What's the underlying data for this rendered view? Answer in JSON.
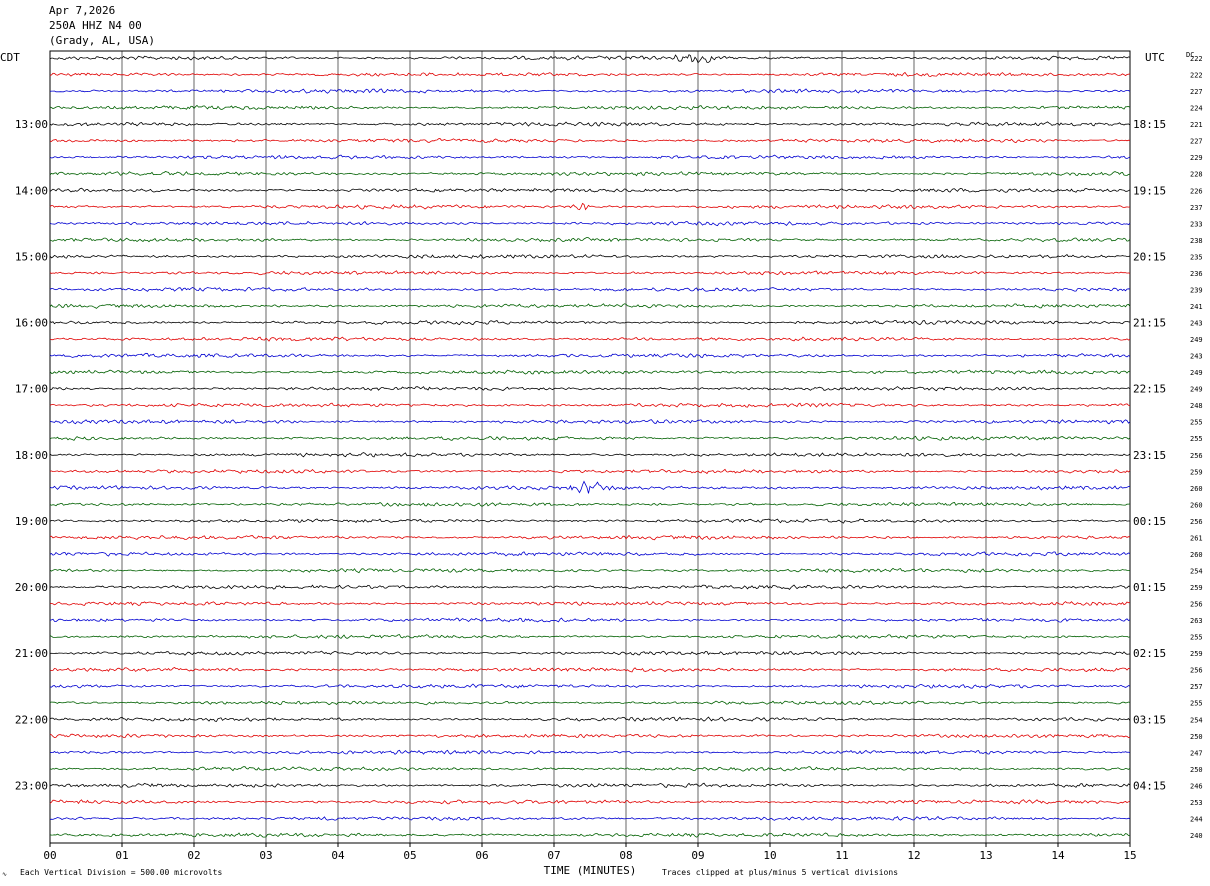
{
  "header": {
    "date": "Apr 7,2026",
    "station": "250A HHZ N4 00",
    "location": "(Grady, AL, USA)"
  },
  "footer": {
    "scale_note": "Each Vertical Division =  500.00 microvolts",
    "clip_note": "Traces clipped at plus/minus 5 vertical divisions"
  },
  "colors": {
    "trace_cycle": [
      "#000000",
      "#e00000",
      "#0000d0",
      "#006000"
    ],
    "grid": "#000000"
  },
  "chart_data": {
    "type": "line",
    "subtype": "helicorder",
    "xlabel": "TIME (MINUTES)",
    "x_ticks": [
      "00",
      "01",
      "02",
      "03",
      "04",
      "05",
      "06",
      "07",
      "08",
      "09",
      "10",
      "11",
      "12",
      "13",
      "14",
      "15"
    ],
    "xlim": [
      0,
      15
    ],
    "left_axis_title": "CDT",
    "right_axis_title": "UTC",
    "dc_title": "DC",
    "left_hour_labels": [
      "13:00",
      "14:00",
      "15:00",
      "16:00",
      "17:00",
      "18:00",
      "19:00",
      "20:00",
      "21:00",
      "22:00",
      "23:00"
    ],
    "right_hour_labels": [
      "18:15",
      "19:15",
      "20:15",
      "21:15",
      "22:15",
      "23:15",
      "00:15",
      "01:15",
      "02:15",
      "03:15",
      "04:15"
    ],
    "first_labeled_trace": 4,
    "trace_count": 48,
    "dc_offsets": [
      222,
      222,
      227,
      224,
      221,
      227,
      229,
      228,
      226,
      237,
      233,
      238,
      235,
      236,
      239,
      241,
      243,
      249,
      243,
      249,
      249,
      248,
      255,
      255,
      256,
      259,
      260,
      260,
      256,
      261,
      260,
      254,
      259,
      256,
      263,
      255,
      259,
      256,
      257,
      255,
      254,
      250,
      247,
      250,
      246,
      253,
      244,
      240
    ],
    "events": [
      {
        "trace": 0,
        "minute_start": 8.6,
        "minute_end": 9.3,
        "amplitude": 2.2
      },
      {
        "trace": 26,
        "minute_start": 7.1,
        "minute_end": 7.9,
        "amplitude": 2.0
      },
      {
        "trace": 9,
        "minute_start": 7.2,
        "minute_end": 7.6,
        "amplitude": 1.2
      }
    ],
    "grid": true
  }
}
